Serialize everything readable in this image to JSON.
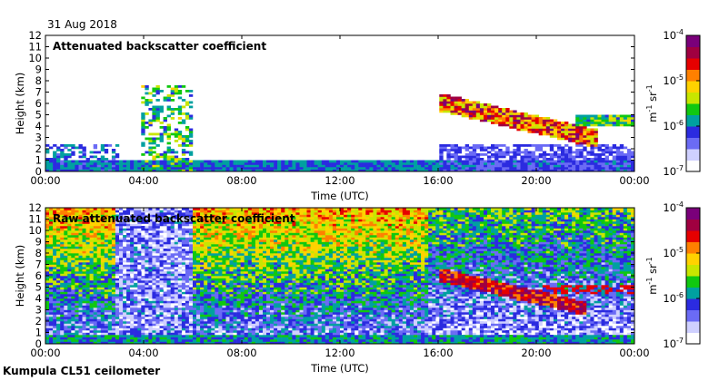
{
  "date": "31 Aug 2018",
  "station": "Kumpula CL51 ceilometer",
  "colors": {
    "scale": [
      "#ffffff",
      "#cfd0ff",
      "#6b6bf5",
      "#2b2be0",
      "#00a0a0",
      "#10c810",
      "#c8e600",
      "#ffd200",
      "#ff8000",
      "#e60000",
      "#a00040",
      "#7a007a"
    ]
  },
  "chart_data": [
    {
      "type": "heatmap",
      "title": "Attenuated backscatter coefficient",
      "xlabel": "Time (UTC)",
      "ylabel": "Height (km)",
      "x_ticks": [
        "00:00",
        "04:00",
        "08:00",
        "12:00",
        "16:00",
        "20:00",
        "00:00"
      ],
      "y_ticks": [
        "0",
        "1",
        "2",
        "3",
        "4",
        "5",
        "6",
        "7",
        "8",
        "9",
        "10",
        "11",
        "12"
      ],
      "xlim_hours": [
        0,
        24
      ],
      "ylim_km": [
        0,
        12
      ],
      "colorbar": {
        "label_base": "m",
        "label_exp1": "-1",
        "label_mid": " sr",
        "label_exp2": "-1",
        "ticks": [
          {
            "base": "10",
            "exp": "-4"
          },
          {
            "base": "10",
            "exp": "-5"
          },
          {
            "base": "10",
            "exp": "-6"
          },
          {
            "base": "10",
            "exp": "-7"
          }
        ]
      }
    },
    {
      "type": "heatmap",
      "title": "Raw attenuated backscatter coefficient",
      "xlabel": "Time (UTC)",
      "ylabel": "Height (km)",
      "x_ticks": [
        "00:00",
        "04:00",
        "08:00",
        "12:00",
        "16:00",
        "20:00",
        "00:00"
      ],
      "y_ticks": [
        "0",
        "1",
        "2",
        "3",
        "4",
        "5",
        "6",
        "7",
        "8",
        "9",
        "10",
        "11",
        "12"
      ],
      "xlim_hours": [
        0,
        24
      ],
      "ylim_km": [
        0,
        12
      ],
      "colorbar": {
        "label_base": "m",
        "label_exp1": "-1",
        "label_mid": " sr",
        "label_exp2": "-1",
        "ticks": [
          {
            "base": "10",
            "exp": "-4"
          },
          {
            "base": "10",
            "exp": "-5"
          },
          {
            "base": "10",
            "exp": "-6"
          },
          {
            "base": "10",
            "exp": "-7"
          }
        ]
      }
    }
  ]
}
